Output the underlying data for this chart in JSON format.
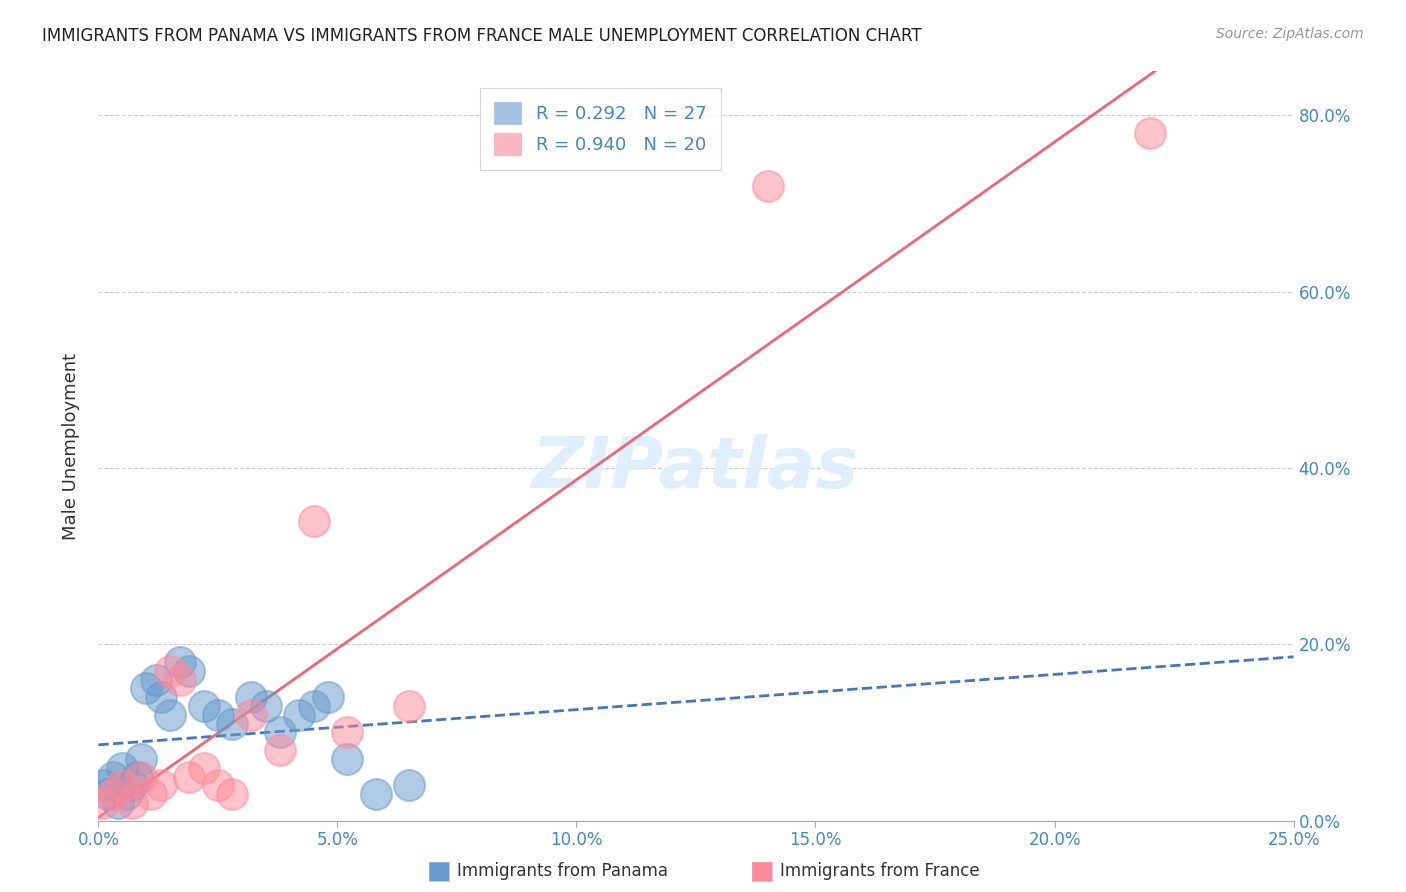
{
  "title": "IMMIGRANTS FROM PANAMA VS IMMIGRANTS FROM FRANCE MALE UNEMPLOYMENT CORRELATION CHART",
  "source": "Source: ZipAtlas.com",
  "ylabel": "Male Unemployment",
  "x_label_panama": "Immigrants from Panama",
  "x_label_france": "Immigrants from France",
  "legend_panama": "R = 0.292   N = 27",
  "legend_france": "R = 0.940   N = 20",
  "xlim": [
    0.0,
    0.25
  ],
  "ylim": [
    0.0,
    0.85
  ],
  "yticks": [
    0.0,
    0.2,
    0.4,
    0.6,
    0.8
  ],
  "xticks": [
    0.0,
    0.05,
    0.1,
    0.15,
    0.2,
    0.25
  ],
  "color_panama": "#6699CC",
  "color_france": "#FF8899",
  "color_panama_line": "#4477BB",
  "color_france_line": "#EE6677",
  "watermark": "ZIPatlas",
  "panama_x": [
    0.001,
    0.002,
    0.003,
    0.004,
    0.005,
    0.006,
    0.007,
    0.008,
    0.009,
    0.01,
    0.012,
    0.013,
    0.015,
    0.017,
    0.019,
    0.022,
    0.025,
    0.028,
    0.032,
    0.035,
    0.038,
    0.042,
    0.045,
    0.048,
    0.052,
    0.058,
    0.065
  ],
  "panama_y": [
    0.04,
    0.03,
    0.05,
    0.02,
    0.06,
    0.03,
    0.04,
    0.05,
    0.07,
    0.15,
    0.16,
    0.14,
    0.12,
    0.18,
    0.17,
    0.13,
    0.12,
    0.11,
    0.14,
    0.13,
    0.1,
    0.12,
    0.13,
    0.14,
    0.07,
    0.03,
    0.04
  ],
  "france_x": [
    0.001,
    0.003,
    0.005,
    0.007,
    0.009,
    0.011,
    0.013,
    0.015,
    0.017,
    0.019,
    0.022,
    0.025,
    0.028,
    0.032,
    0.038,
    0.045,
    0.052,
    0.065,
    0.14,
    0.22
  ],
  "france_y": [
    0.02,
    0.03,
    0.04,
    0.02,
    0.05,
    0.03,
    0.04,
    0.17,
    0.16,
    0.05,
    0.06,
    0.04,
    0.03,
    0.12,
    0.08,
    0.34,
    0.1,
    0.13,
    0.72,
    0.78
  ]
}
